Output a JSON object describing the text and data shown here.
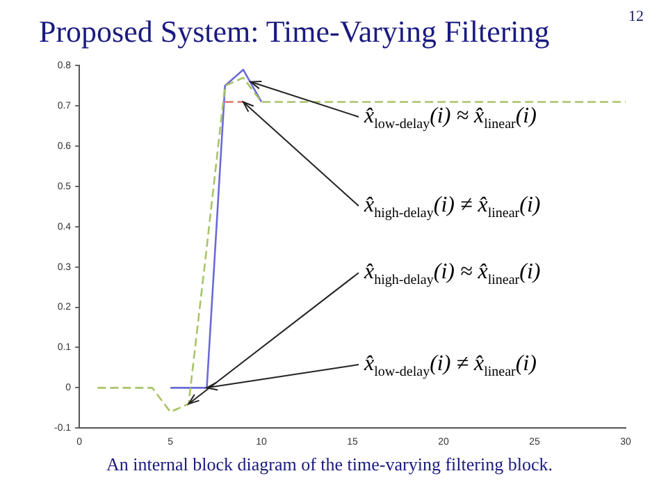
{
  "chart_data": {
    "type": "line",
    "title": "Proposed System: Time-Varying Filtering",
    "x": [
      1,
      2,
      3,
      4,
      5,
      6,
      7,
      8,
      9,
      10,
      11,
      12,
      13,
      14,
      15,
      16,
      17,
      18,
      19,
      20,
      21,
      22,
      23,
      24,
      25,
      26,
      27,
      28,
      29,
      30
    ],
    "series": [
      {
        "color": "#e07070",
        "line_style": "dashed",
        "values": [
          null,
          null,
          null,
          null,
          null,
          null,
          null,
          0.71,
          0.71,
          null,
          null,
          null,
          null,
          null,
          null,
          null,
          null,
          null,
          null,
          null,
          null,
          null,
          null,
          null,
          null,
          null,
          null,
          null,
          null,
          null
        ]
      },
      {
        "color": "#a8c468",
        "line_style": "dashed",
        "values": [
          0,
          0,
          0,
          0,
          -0.06,
          -0.04,
          0.35,
          0.75,
          0.77,
          0.71,
          0.71,
          0.71,
          0.71,
          0.71,
          0.71,
          0.71,
          0.71,
          0.71,
          0.71,
          0.71,
          0.71,
          0.71,
          0.71,
          0.71,
          0.71,
          0.71,
          0.71,
          0.71,
          0.71,
          0.71
        ]
      },
      {
        "color": "#6a6ad8",
        "line_style": "solid",
        "values": [
          null,
          null,
          null,
          null,
          0,
          0,
          0,
          0.75,
          0.79,
          0.71,
          null,
          null,
          null,
          null,
          null,
          null,
          null,
          null,
          null,
          null,
          null,
          null,
          null,
          null,
          null,
          null,
          null,
          null,
          null,
          null
        ]
      }
    ],
    "xlim": [
      0,
      30
    ],
    "xticks": [
      0,
      5,
      10,
      15,
      20,
      25,
      30
    ],
    "ylim": [
      -0.1,
      0.8
    ],
    "yticks": [
      -0.1,
      0,
      0.1,
      0.2,
      0.3,
      0.4,
      0.5,
      0.6,
      0.7,
      0.8
    ],
    "grid": false,
    "legend": false,
    "annotations": [
      {
        "text": "x̂$_{low-delay}$(i) ≈ x̂$_{linear}$(i)",
        "x": 9.4,
        "y": 0.76
      },
      {
        "text": "x̂$_{high-delay}$(i) ≠ x̂$_{linear}$(i)",
        "x": 9,
        "y": 0.71
      },
      {
        "text": "x̂$_{high-delay}$(i) ≈ x̂$_{linear}$(i)",
        "x": 6,
        "y": -0.04
      },
      {
        "text": "x̂$_{low-delay}$(i) ≠ x̂$_{linear}$(i)",
        "x": 7,
        "y": 0
      },
      "12",
      "An internal block diagram of the time-varying filtering block."
    ]
  }
}
